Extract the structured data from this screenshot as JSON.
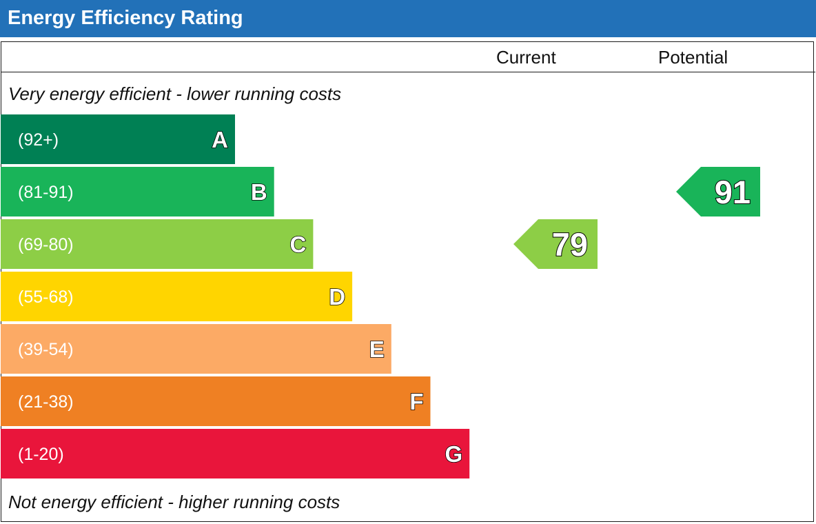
{
  "title": "Energy Efficiency Rating",
  "columns": {
    "current": "Current",
    "potential": "Potential"
  },
  "top_note": "Very energy efficient - lower running costs",
  "bottom_note": "Not energy efficient - higher running costs",
  "chart_data": {
    "type": "bar",
    "categories": [
      "A",
      "B",
      "C",
      "D",
      "E",
      "F",
      "G"
    ],
    "bands": [
      {
        "letter": "A",
        "range": "(92+)",
        "color": "#008054"
      },
      {
        "letter": "B",
        "range": "(81-91)",
        "color": "#19b459"
      },
      {
        "letter": "C",
        "range": "(69-80)",
        "color": "#8dce46"
      },
      {
        "letter": "D",
        "range": "(55-68)",
        "color": "#ffd500"
      },
      {
        "letter": "E",
        "range": "(39-54)",
        "color": "#fcaa65"
      },
      {
        "letter": "F",
        "range": "(21-38)",
        "color": "#ef8023"
      },
      {
        "letter": "G",
        "range": "(1-20)",
        "color": "#e9153b"
      }
    ],
    "current": {
      "value": "79",
      "band": "C",
      "color": "#8dce46"
    },
    "potential": {
      "value": "91",
      "band": "B",
      "color": "#19b459"
    }
  }
}
